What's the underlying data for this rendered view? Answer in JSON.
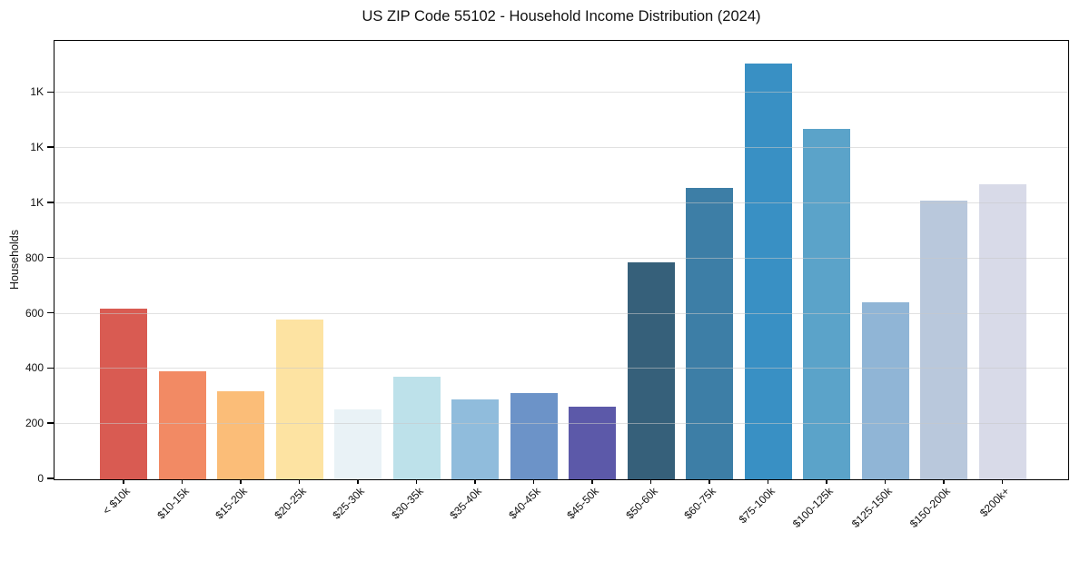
{
  "chart_data": {
    "type": "bar",
    "title": "US ZIP Code 55102 - Household Income Distribution (2024)",
    "xlabel": "",
    "ylabel": "Households",
    "categories": [
      "< $10k",
      "$10-15k",
      "$15-20k",
      "$20-25k",
      "$25-30k",
      "$30-35k",
      "$35-40k",
      "$40-45k",
      "$45-50k",
      "$50-60k",
      "$60-75k",
      "$75-100k",
      "$100-125k",
      "$125-150k",
      "$150-200k",
      "$200k+"
    ],
    "values": [
      618,
      393,
      320,
      579,
      252,
      373,
      288,
      312,
      263,
      785,
      1055,
      1507,
      1270,
      640,
      1010,
      1068
    ],
    "bar_colors": [
      "#d95b52",
      "#f28a64",
      "#fbbd78",
      "#fde3a2",
      "#e9f2f6",
      "#bde1ea",
      "#90bcdc",
      "#6c93c8",
      "#5c59a9",
      "#36607a",
      "#3d7ea6",
      "#3990c4",
      "#5ba3c9",
      "#90b5d6",
      "#b9c8dc",
      "#d8dae8"
    ],
    "ylim": [
      0,
      1585
    ],
    "y_ticks": [
      {
        "value": 0,
        "label": "0"
      },
      {
        "value": 200,
        "label": "200"
      },
      {
        "value": 400,
        "label": "400"
      },
      {
        "value": 600,
        "label": "600"
      },
      {
        "value": 800,
        "label": "800"
      },
      {
        "value": 1000,
        "label": "1K"
      },
      {
        "value": 1200,
        "label": "1K"
      },
      {
        "value": 1400,
        "label": "1K"
      }
    ],
    "grid": {
      "horizontal": true,
      "color": "#e6e6e6",
      "drawn_over_bars": true
    },
    "legend": "none"
  }
}
